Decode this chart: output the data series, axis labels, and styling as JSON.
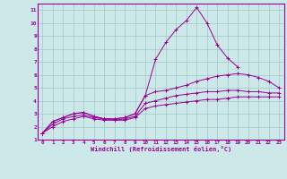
{
  "xlabel": "Windchill (Refroidissement éolien,°C)",
  "background_color": "#cce8e8",
  "line_color": "#990099",
  "xlim": [
    -0.5,
    23.5
  ],
  "ylim": [
    1,
    11.5
  ],
  "xticks": [
    0,
    1,
    2,
    3,
    4,
    5,
    6,
    7,
    8,
    9,
    10,
    11,
    12,
    13,
    14,
    15,
    16,
    17,
    18,
    19,
    20,
    21,
    22,
    23
  ],
  "yticks": [
    1,
    2,
    3,
    4,
    5,
    6,
    7,
    8,
    9,
    10,
    11
  ],
  "series": [
    [
      1.5,
      2.4,
      2.7,
      3.0,
      3.1,
      2.8,
      2.6,
      2.6,
      2.7,
      3.0,
      4.4,
      7.2,
      8.5,
      9.5,
      10.2,
      11.2,
      10.0,
      8.3,
      7.3,
      6.6,
      null,
      null,
      null,
      null
    ],
    [
      1.5,
      2.4,
      2.7,
      3.0,
      3.1,
      2.8,
      2.6,
      2.6,
      2.7,
      3.0,
      4.4,
      4.7,
      4.8,
      5.0,
      5.2,
      5.5,
      5.7,
      5.9,
      6.0,
      6.1,
      6.0,
      5.8,
      5.5,
      5.0
    ],
    [
      1.5,
      2.2,
      2.6,
      2.8,
      2.9,
      2.7,
      2.6,
      2.5,
      2.6,
      2.8,
      3.8,
      4.0,
      4.2,
      4.4,
      4.5,
      4.6,
      4.7,
      4.7,
      4.8,
      4.8,
      4.7,
      4.7,
      4.6,
      4.6
    ],
    [
      1.5,
      2.0,
      2.4,
      2.6,
      2.8,
      2.6,
      2.5,
      2.5,
      2.5,
      2.7,
      3.4,
      3.6,
      3.7,
      3.8,
      3.9,
      4.0,
      4.1,
      4.1,
      4.2,
      4.3,
      4.3,
      4.3,
      4.3,
      4.3
    ]
  ]
}
